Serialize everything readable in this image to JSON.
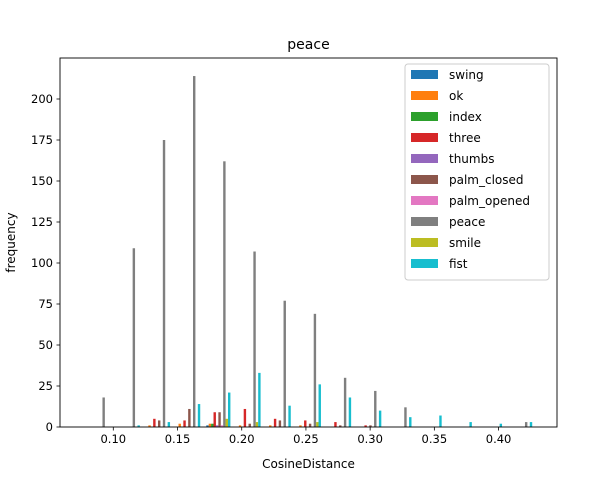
{
  "chart_data": {
    "type": "bar",
    "title": "peace",
    "xlabel": "CosineDistance",
    "ylabel": "frequency",
    "xlim": [
      0.0585,
      0.4455
    ],
    "ylim": [
      0,
      225
    ],
    "xticks": [
      {
        "value": 0.1,
        "label": "0.10"
      },
      {
        "value": 0.15,
        "label": "0.15"
      },
      {
        "value": 0.2,
        "label": "0.20"
      },
      {
        "value": 0.25,
        "label": "0.25"
      },
      {
        "value": 0.3,
        "label": "0.30"
      },
      {
        "value": 0.35,
        "label": "0.35"
      },
      {
        "value": 0.4,
        "label": "0.40"
      }
    ],
    "yticks": [
      {
        "value": 0,
        "label": "0"
      },
      {
        "value": 25,
        "label": "25"
      },
      {
        "value": 50,
        "label": "50"
      },
      {
        "value": 75,
        "label": "75"
      },
      {
        "value": 100,
        "label": "100"
      },
      {
        "value": 125,
        "label": "125"
      },
      {
        "value": 150,
        "label": "150"
      },
      {
        "value": 175,
        "label": "175"
      },
      {
        "value": 200,
        "label": "200"
      }
    ],
    "bin_width": 0.0235,
    "bin_centers": [
      0.0878,
      0.1113,
      0.1348,
      0.1583,
      0.1818,
      0.2053,
      0.2288,
      0.2523,
      0.2758,
      0.2993,
      0.3228,
      0.3463,
      0.3698,
      0.3933,
      0.4168
    ],
    "legend_position": "upper-right",
    "series": [
      {
        "name": "swing",
        "color": "#1f77b4",
        "values": [
          0,
          0,
          0,
          0,
          1,
          0,
          0,
          0,
          0,
          0,
          0,
          0,
          0,
          0,
          0
        ]
      },
      {
        "name": "ok",
        "color": "#ff7f0e",
        "values": [
          0,
          0,
          1,
          2,
          2,
          1,
          1,
          1,
          0,
          0,
          0,
          0,
          0,
          0,
          0
        ]
      },
      {
        "name": "index",
        "color": "#2ca02c",
        "values": [
          0,
          0,
          0,
          0,
          2,
          0,
          0,
          0,
          0,
          0,
          0,
          0,
          0,
          0,
          0
        ]
      },
      {
        "name": "three",
        "color": "#d62728",
        "values": [
          0,
          0,
          5,
          4,
          9,
          11,
          5,
          4,
          3,
          1,
          0,
          0,
          0,
          0,
          0
        ]
      },
      {
        "name": "thumbs",
        "color": "#9467bd",
        "values": [
          0,
          0,
          0,
          0,
          1,
          0,
          0,
          0,
          0,
          0,
          0,
          0,
          0,
          0,
          0
        ]
      },
      {
        "name": "palm_closed",
        "color": "#8c564b",
        "values": [
          0,
          0,
          4,
          11,
          9,
          2,
          4,
          2,
          1,
          1,
          0,
          0,
          0,
          0,
          0
        ]
      },
      {
        "name": "palm_opened",
        "color": "#e377c2",
        "values": [
          0,
          0,
          0,
          0,
          1,
          0,
          0,
          0,
          0,
          0,
          0,
          0,
          0,
          0,
          0
        ]
      },
      {
        "name": "peace",
        "color": "#7f7f7f",
        "values": [
          18,
          109,
          175,
          214,
          162,
          107,
          77,
          69,
          30,
          22,
          12,
          0,
          0,
          0,
          3
        ]
      },
      {
        "name": "smile",
        "color": "#bcbd22",
        "values": [
          0,
          0,
          0,
          0,
          5,
          3,
          0,
          3,
          0,
          0,
          0,
          0,
          0,
          0,
          0
        ]
      },
      {
        "name": "fist",
        "color": "#17becf",
        "values": [
          0,
          1,
          3,
          14,
          21,
          33,
          13,
          26,
          18,
          10,
          6,
          7,
          3,
          2,
          3
        ]
      }
    ]
  }
}
